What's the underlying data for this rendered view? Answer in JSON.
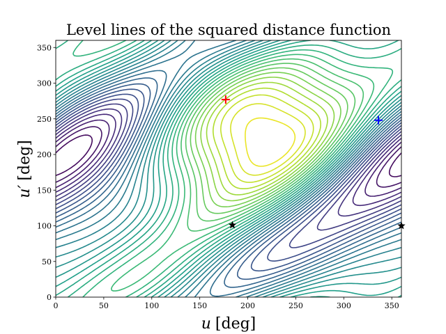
{
  "chart_data": {
    "type": "contour",
    "title": "Level lines of the squared distance function",
    "xlabel": {
      "var": "u",
      "unit": "[deg]"
    },
    "ylabel": {
      "var": "u′",
      "unit": "[deg]"
    },
    "xlim": [
      0,
      360
    ],
    "ylim": [
      0,
      360
    ],
    "xticks": [
      0,
      50,
      100,
      150,
      200,
      250,
      300,
      350
    ],
    "yticks": [
      0,
      50,
      100,
      150,
      200,
      250,
      300,
      350
    ],
    "colormap": "viridis",
    "grid": false,
    "markers": [
      {
        "kind": "plus",
        "color": "#ff0000",
        "x": 177,
        "y": 277
      },
      {
        "kind": "plus",
        "color": "#0000ff",
        "x": 336,
        "y": 248
      },
      {
        "kind": "star",
        "color": "#000000",
        "x": 184,
        "y": 101
      },
      {
        "kind": "star",
        "color": "#000000",
        "x": 360,
        "y": 100
      }
    ]
  }
}
